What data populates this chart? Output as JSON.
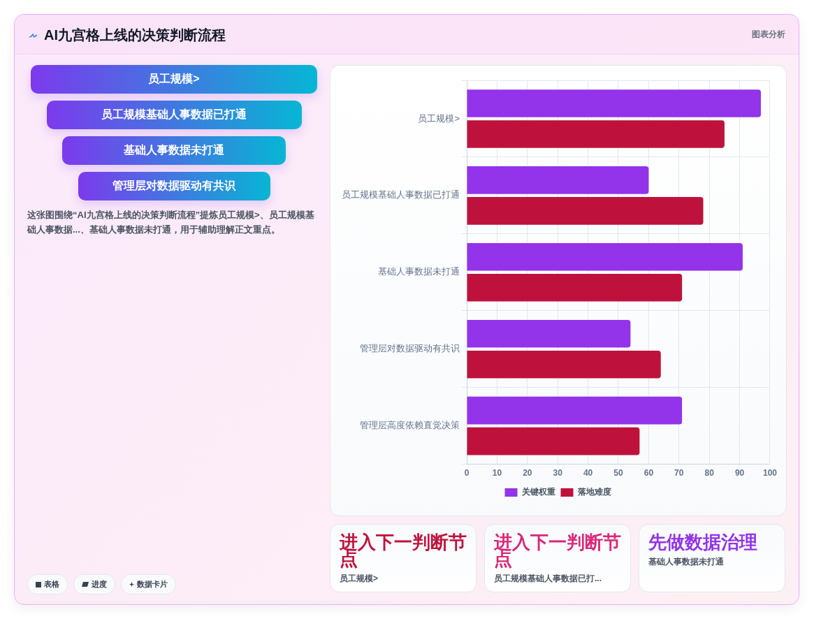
{
  "chart_data": [
    {
      "type": "other",
      "title": "AI九宫格上线的决策判断流程",
      "categories": [
        "员工规模>",
        "员工规模基础人事数据已打通",
        "基础人事数据未打通",
        "管理层对数据驱动有共识"
      ],
      "annotations": [
        "图表分析",
        "这张图围绕“AI九宫格上线的决策判断流程”提炼员工规模>、员工规模基础人事数据...、基础人事数据未打通，用于辅助理解正文重点。",
        "表格",
        "进度",
        "数据卡片"
      ]
    },
    {
      "type": "bar",
      "orientation": "horizontal",
      "categories": [
        "员工规模>",
        "员工规模基础人事数据已打通",
        "基础人事数据未打通",
        "管理层对数据驱动有共识",
        "管理层高度依赖直觉决策"
      ],
      "series": [
        {
          "name": "关键权重",
          "color": "#9333ea",
          "values": [
            97,
            60,
            91,
            54,
            71
          ]
        },
        {
          "name": "落地难度",
          "color": "#be123c",
          "values": [
            85,
            78,
            71,
            64,
            57
          ]
        }
      ],
      "xlim": [
        0,
        100
      ],
      "xticks": [
        0,
        10,
        20,
        30,
        40,
        50,
        60,
        70,
        80,
        90,
        100
      ],
      "grid": true,
      "legend": "bottom"
    },
    {
      "type": "other",
      "title": "进入下一判断节点",
      "subtitle": "员工规模>",
      "color": "#be123c"
    },
    {
      "type": "other",
      "title": "进入下一判断节点",
      "subtitle": "员工规模基础人事数据已打...",
      "color": "#db2777"
    },
    {
      "type": "other",
      "title": "先做数据治理",
      "subtitle": "基础人事数据未打通",
      "color": "#9333ea"
    }
  ]
}
